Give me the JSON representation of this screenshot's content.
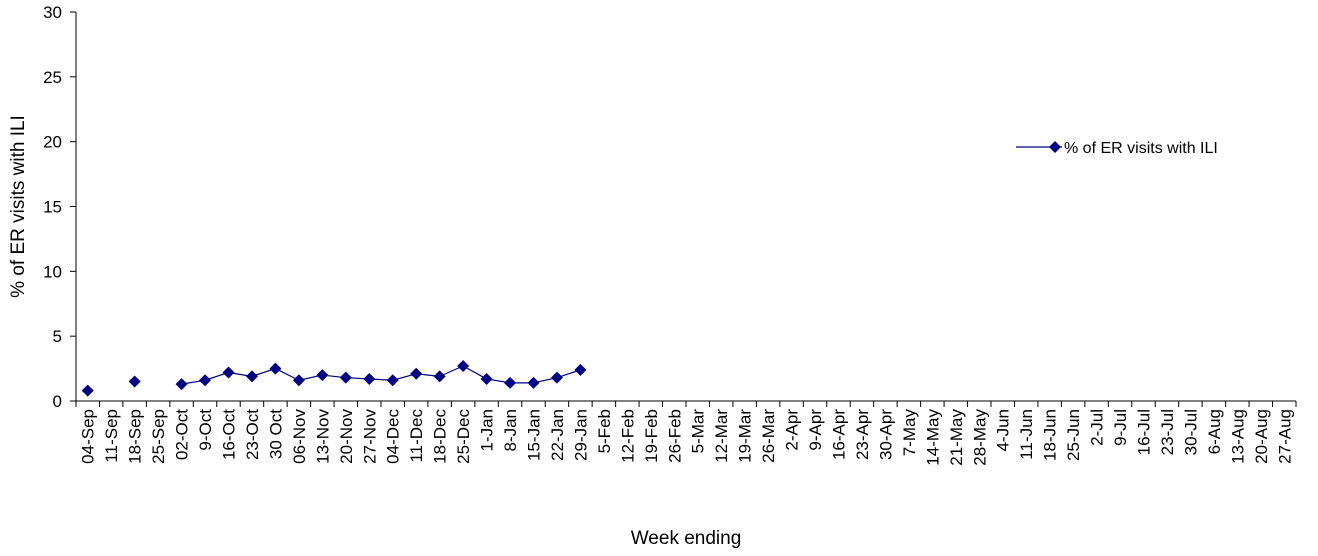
{
  "chart_data": {
    "type": "line",
    "title": "",
    "xlabel": "Week ending",
    "ylabel": "% of ER visits with ILI",
    "ylim": [
      0,
      30
    ],
    "yticks": [
      0,
      5,
      10,
      15,
      20,
      25,
      30
    ],
    "grid": false,
    "legend_position": "right",
    "categories": [
      "04-Sep",
      "11-Sep",
      "18-Sep",
      "25-Sep",
      "02-Oct",
      "9-Oct",
      "16-Oct",
      "23-Oct",
      "30 Oct",
      "06-Nov",
      "13-Nov",
      "20-Nov",
      "27-Nov",
      "04-Dec",
      "11-Dec",
      "18-Dec",
      "25-Dec",
      "1-Jan",
      "8-Jan",
      "15-Jan",
      "22-Jan",
      "29-Jan",
      "5-Feb",
      "12-Feb",
      "19-Feb",
      "26-Feb",
      "5-Mar",
      "12-Mar",
      "19-Mar",
      "26-Mar",
      "2-Apr",
      "9-Apr",
      "16-Apr",
      "23-Apr",
      "30-Apr",
      "7-May",
      "14-May",
      "21-May",
      "28-May",
      "4-Jun",
      "11-Jun",
      "18-Jun",
      "25-Jun",
      "2-Jul",
      "9-Jul",
      "16-Jul",
      "23-Jul",
      "30-Jul",
      "6-Aug",
      "13-Aug",
      "20-Aug",
      "27-Aug"
    ],
    "series": [
      {
        "name": "% of ER visits with ILI",
        "color": "#000080",
        "marker": "diamond",
        "values": [
          0.8,
          null,
          1.5,
          null,
          1.3,
          1.6,
          2.2,
          1.9,
          2.5,
          1.6,
          2.0,
          1.8,
          1.7,
          1.6,
          2.1,
          1.9,
          2.7,
          1.7,
          1.4,
          1.4,
          1.8,
          2.4,
          null,
          null,
          null,
          null,
          null,
          null,
          null,
          null,
          null,
          null,
          null,
          null,
          null,
          null,
          null,
          null,
          null,
          null,
          null,
          null,
          null,
          null,
          null,
          null,
          null,
          null,
          null,
          null,
          null,
          null
        ]
      }
    ]
  }
}
